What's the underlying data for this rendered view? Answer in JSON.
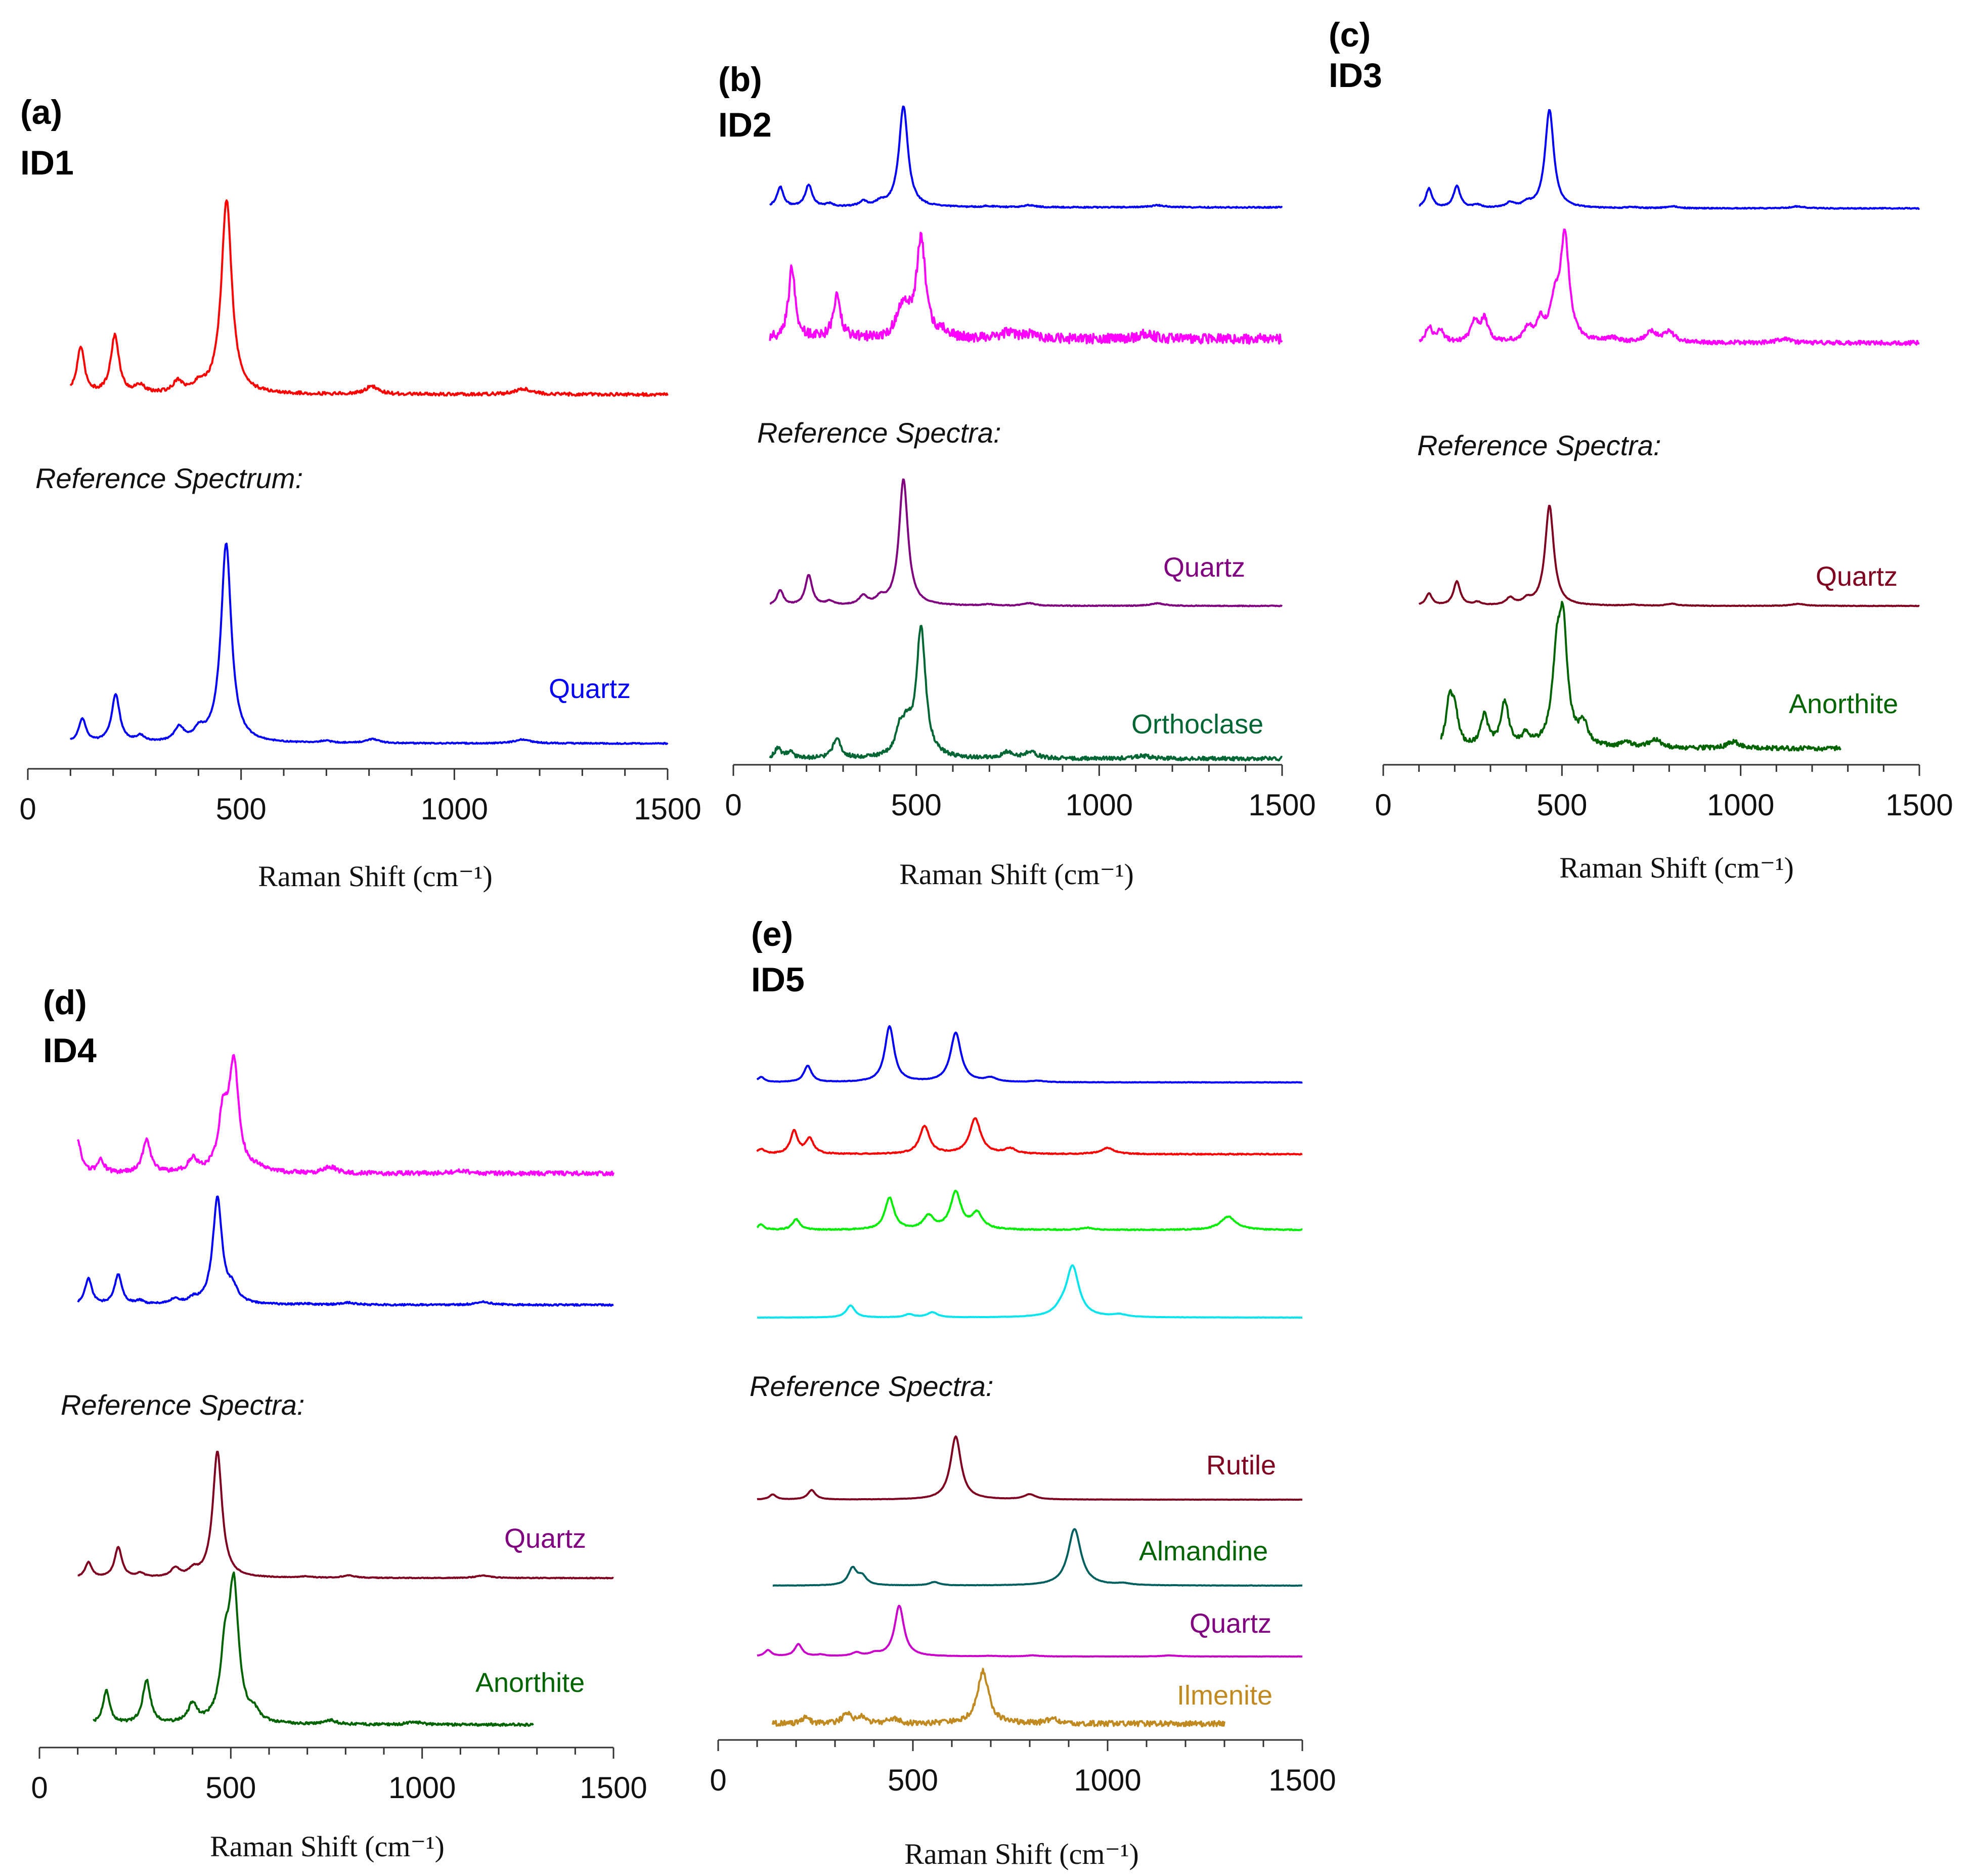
{
  "chart_data": [
    {
      "type": "line",
      "panel": "(a)",
      "id": "ID1",
      "reference_heading": "Reference Spectrum:",
      "xlabel": "Raman Shift (cm⁻¹)",
      "xlim": [
        0,
        1500
      ],
      "xticks": [
        "0",
        "500",
        "1000",
        "1500"
      ],
      "series": [
        {
          "name": "ID1 sample",
          "label": "",
          "color": "#ff0000",
          "x_range": [
            100,
            1500
          ],
          "peaks": [
            [
              124,
              0.24
            ],
            [
              204,
              0.3
            ],
            [
              263,
              0.04
            ],
            [
              352,
              0.06
            ],
            [
              402,
              0.04
            ],
            [
              466,
              1.0
            ],
            [
              806,
              0.04
            ],
            [
              1162,
              0.03
            ]
          ],
          "noise": 0.008
        },
        {
          "name": "Quartz reference",
          "label": "Quartz",
          "color": "#0000ff",
          "x_range": [
            100,
            1500
          ],
          "peaks": [
            [
              128,
              0.12
            ],
            [
              206,
              0.24
            ],
            [
              264,
              0.03
            ],
            [
              355,
              0.07
            ],
            [
              402,
              0.05
            ],
            [
              465,
              1.0
            ],
            [
              697,
              0.01
            ],
            [
              808,
              0.02
            ],
            [
              1160,
              0.02
            ]
          ],
          "noise": 0.003
        }
      ]
    },
    {
      "type": "line",
      "panel": "(b)",
      "id": "ID2",
      "reference_heading": "Reference Spectra:",
      "xlabel": "Raman Shift (cm⁻¹)",
      "xlim": [
        0,
        1500
      ],
      "xticks": [
        "0",
        "500",
        "1000",
        "1500"
      ],
      "series": [
        {
          "name": "ID2 spot 1",
          "label": "",
          "color": "#0000ff",
          "x_range": [
            100,
            1500
          ],
          "peaks": [
            [
              128,
              0.2
            ],
            [
              206,
              0.22
            ],
            [
              263,
              0.03
            ],
            [
              355,
              0.05
            ],
            [
              402,
              0.04
            ],
            [
              465,
              1.0
            ],
            [
              697,
              0.01
            ],
            [
              808,
              0.02
            ],
            [
              1160,
              0.02
            ]
          ],
          "noise": 0.006
        },
        {
          "name": "ID2 spot 2",
          "label": "",
          "color": "#ff00ff",
          "x_range": [
            100,
            1500
          ],
          "peaks": [
            [
              160,
              0.72
            ],
            [
              283,
              0.42
            ],
            [
              455,
              0.22
            ],
            [
              475,
              0.18
            ],
            [
              513,
              1.0
            ],
            [
              580,
              0.05
            ],
            [
              750,
              0.06
            ],
            [
              810,
              0.05
            ],
            [
              1130,
              0.05
            ]
          ],
          "noise": 0.05
        },
        {
          "name": "Quartz reference",
          "label": "Quartz",
          "color": "#800080",
          "x_range": [
            100,
            1500
          ],
          "peaks": [
            [
              128,
              0.12
            ],
            [
              206,
              0.24
            ],
            [
              264,
              0.03
            ],
            [
              355,
              0.07
            ],
            [
              402,
              0.05
            ],
            [
              465,
              1.0
            ],
            [
              697,
              0.01
            ],
            [
              808,
              0.02
            ],
            [
              1160,
              0.02
            ]
          ],
          "noise": 0.003
        },
        {
          "name": "Orthoclase reference",
          "label": "Orthoclase",
          "color": "#006633",
          "x_range": [
            100,
            1500
          ],
          "peaks": [
            [
              122,
              0.08
            ],
            [
              155,
              0.05
            ],
            [
              283,
              0.16
            ],
            [
              455,
              0.18
            ],
            [
              475,
              0.18
            ],
            [
              513,
              1.0
            ],
            [
              750,
              0.05
            ],
            [
              813,
              0.05
            ],
            [
              1120,
              0.02
            ]
          ],
          "noise": 0.015
        }
      ]
    },
    {
      "type": "line",
      "panel": "(c)",
      "id": "ID3",
      "reference_heading": "Reference Spectra:",
      "xlabel": "Raman Shift (cm⁻¹)",
      "xlim": [
        0,
        1500
      ],
      "xticks": [
        "0",
        "500",
        "1000",
        "1500"
      ],
      "series": [
        {
          "name": "ID3 spot 1",
          "label": "",
          "color": "#0000ff",
          "x_range": [
            100,
            1500
          ],
          "peaks": [
            [
              128,
              0.2
            ],
            [
              206,
              0.22
            ],
            [
              263,
              0.03
            ],
            [
              355,
              0.05
            ],
            [
              402,
              0.04
            ],
            [
              465,
              1.0
            ],
            [
              697,
              0.01
            ],
            [
              808,
              0.02
            ],
            [
              1160,
              0.02
            ]
          ],
          "noise": 0.005
        },
        {
          "name": "ID3 spot 2",
          "label": "",
          "color": "#ff00ff",
          "x_range": [
            100,
            1500
          ],
          "peaks": [
            [
              128,
              0.15
            ],
            [
              160,
              0.12
            ],
            [
              255,
              0.2
            ],
            [
              283,
              0.22
            ],
            [
              405,
              0.12
            ],
            [
              440,
              0.18
            ],
            [
              480,
              0.32
            ],
            [
              508,
              1.0
            ],
            [
              640,
              0.04
            ],
            [
              750,
              0.1
            ],
            [
              800,
              0.1
            ],
            [
              1120,
              0.04
            ]
          ],
          "noise": 0.02
        },
        {
          "name": "Quartz reference",
          "label": "Quartz",
          "color": "#800020",
          "x_range": [
            100,
            1500
          ],
          "peaks": [
            [
              128,
              0.12
            ],
            [
              206,
              0.24
            ],
            [
              264,
              0.03
            ],
            [
              355,
              0.07
            ],
            [
              402,
              0.05
            ],
            [
              465,
              1.0
            ],
            [
              697,
              0.01
            ],
            [
              808,
              0.02
            ],
            [
              1160,
              0.02
            ]
          ],
          "noise": 0.003
        },
        {
          "name": "Anorthite reference",
          "label": "Anorthite",
          "color": "#006400",
          "x_range": [
            160,
            1280
          ],
          "peaks": [
            [
              185,
              0.38
            ],
            [
              200,
              0.3
            ],
            [
              283,
              0.28
            ],
            [
              340,
              0.4
            ],
            [
              400,
              0.1
            ],
            [
              485,
              0.65
            ],
            [
              503,
              1.0
            ],
            [
              560,
              0.18
            ],
            [
              680,
              0.05
            ],
            [
              760,
              0.08
            ],
            [
              980,
              0.06
            ]
          ],
          "noise": 0.02
        }
      ]
    },
    {
      "type": "line",
      "panel": "(d)",
      "id": "ID4",
      "reference_heading": "Reference Spectra:",
      "xlabel": "Raman Shift (cm⁻¹)",
      "xlim": [
        0,
        1500
      ],
      "xticks": [
        "0",
        "500",
        "1000",
        "1500"
      ],
      "series": [
        {
          "name": "ID4 spot 1",
          "label": "",
          "color": "#ff00ff",
          "x_range": [
            100,
            1500
          ],
          "peaks": [
            [
              100,
              0.3
            ],
            [
              160,
              0.12
            ],
            [
              280,
              0.32
            ],
            [
              400,
              0.12
            ],
            [
              480,
              0.5
            ],
            [
              508,
              1.0
            ],
            [
              570,
              0.04
            ],
            [
              760,
              0.06
            ],
            [
              1100,
              0.03
            ]
          ],
          "noise": 0.02
        },
        {
          "name": "ID4 spot 2",
          "label": "",
          "color": "#0000ff",
          "x_range": [
            100,
            1500
          ],
          "peaks": [
            [
              128,
              0.25
            ],
            [
              206,
              0.28
            ],
            [
              263,
              0.03
            ],
            [
              355,
              0.05
            ],
            [
              402,
              0.04
            ],
            [
              465,
              1.0
            ],
            [
              505,
              0.13
            ],
            [
              697,
              0.01
            ],
            [
              808,
              0.02
            ],
            [
              1160,
              0.03
            ]
          ],
          "noise": 0.008
        },
        {
          "name": "Quartz reference",
          "label": "Quartz",
          "color": "#800020",
          "x_range": [
            100,
            1500
          ],
          "peaks": [
            [
              128,
              0.12
            ],
            [
              206,
              0.24
            ],
            [
              264,
              0.03
            ],
            [
              355,
              0.07
            ],
            [
              402,
              0.05
            ],
            [
              465,
              1.0
            ],
            [
              697,
              0.01
            ],
            [
              808,
              0.02
            ],
            [
              1160,
              0.02
            ]
          ],
          "noise": 0.003
        },
        {
          "name": "Anorthite reference",
          "label": "Anorthite",
          "color": "#006400",
          "x_range": [
            140,
            1290
          ],
          "peaks": [
            [
              175,
              0.25
            ],
            [
              280,
              0.33
            ],
            [
              400,
              0.14
            ],
            [
              485,
              0.48
            ],
            [
              508,
              1.0
            ],
            [
              560,
              0.07
            ],
            [
              760,
              0.03
            ],
            [
              980,
              0.02
            ]
          ],
          "noise": 0.01
        }
      ]
    },
    {
      "type": "line",
      "panel": "(e)",
      "id": "ID5",
      "reference_heading": "Reference Spectra:",
      "xlabel": "Raman Shift (cm⁻¹)",
      "xlim": [
        0,
        1500
      ],
      "xticks": [
        "0",
        "500",
        "1000",
        "1500"
      ],
      "series": [
        {
          "name": "ID5 spot 1",
          "label": "",
          "color": "#0000ff",
          "x_range": [
            100,
            1500
          ],
          "peaks": [
            [
              110,
              0.08
            ],
            [
              230,
              0.25
            ],
            [
              440,
              0.85
            ],
            [
              610,
              0.75
            ],
            [
              700,
              0.06
            ],
            [
              820,
              0.02
            ]
          ],
          "noise": 0.004
        },
        {
          "name": "ID5 spot 2",
          "label": "",
          "color": "#ff0000",
          "x_range": [
            100,
            1500
          ],
          "peaks": [
            [
              110,
              0.1
            ],
            [
              195,
              0.45
            ],
            [
              235,
              0.3
            ],
            [
              530,
              0.55
            ],
            [
              660,
              0.7
            ],
            [
              750,
              0.1
            ],
            [
              1000,
              0.12
            ]
          ],
          "noise": 0.01
        },
        {
          "name": "ID5 spot 3",
          "label": "",
          "color": "#00ee00",
          "x_range": [
            100,
            1500
          ],
          "peaks": [
            [
              110,
              0.1
            ],
            [
              200,
              0.2
            ],
            [
              440,
              0.6
            ],
            [
              540,
              0.25
            ],
            [
              610,
              0.7
            ],
            [
              665,
              0.3
            ],
            [
              950,
              0.04
            ],
            [
              1310,
              0.25
            ]
          ],
          "noise": 0.01
        },
        {
          "name": "ID5 spot 4",
          "label": "",
          "color": "#00e5ee",
          "x_range": [
            100,
            1500
          ],
          "peaks": [
            [
              340,
              0.24
            ],
            [
              490,
              0.06
            ],
            [
              550,
              0.1
            ],
            [
              880,
              0.1
            ],
            [
              910,
              1.0
            ],
            [
              1030,
              0.05
            ]
          ],
          "noise": 0.003
        },
        {
          "name": "Rutile reference",
          "label": "Rutile",
          "color": "#800020",
          "x_range": [
            100,
            1500
          ],
          "peaks": [
            [
              140,
              0.08
            ],
            [
              240,
              0.15
            ],
            [
              610,
              1.0
            ],
            [
              800,
              0.08
            ]
          ],
          "noise": 0.002
        },
        {
          "name": "Almandine reference",
          "label": "Almandine",
          "color": "#006060",
          "x_range": [
            140,
            1500
          ],
          "peaks": [
            [
              345,
              0.3
            ],
            [
              370,
              0.15
            ],
            [
              555,
              0.06
            ],
            [
              915,
              1.0
            ],
            [
              1040,
              0.03
            ]
          ],
          "noise": 0.003
        },
        {
          "name": "Quartz reference",
          "label": "Quartz",
          "color": "#cc00cc",
          "x_range": [
            100,
            1500
          ],
          "peaks": [
            [
              128,
              0.12
            ],
            [
              206,
              0.24
            ],
            [
              264,
              0.03
            ],
            [
              355,
              0.07
            ],
            [
              402,
              0.05
            ],
            [
              465,
              1.0
            ],
            [
              697,
              0.01
            ],
            [
              808,
              0.02
            ],
            [
              1160,
              0.02
            ]
          ],
          "noise": 0.003
        },
        {
          "name": "Ilmenite reference",
          "label": "Ilmenite",
          "color": "#c08a20",
          "x_range": [
            140,
            1300
          ],
          "peaks": [
            [
              225,
              0.12
            ],
            [
              330,
              0.2
            ],
            [
              370,
              0.12
            ],
            [
              450,
              0.1
            ],
            [
              680,
              1.0
            ],
            [
              860,
              0.08
            ]
          ],
          "noise": 0.05
        }
      ]
    }
  ]
}
